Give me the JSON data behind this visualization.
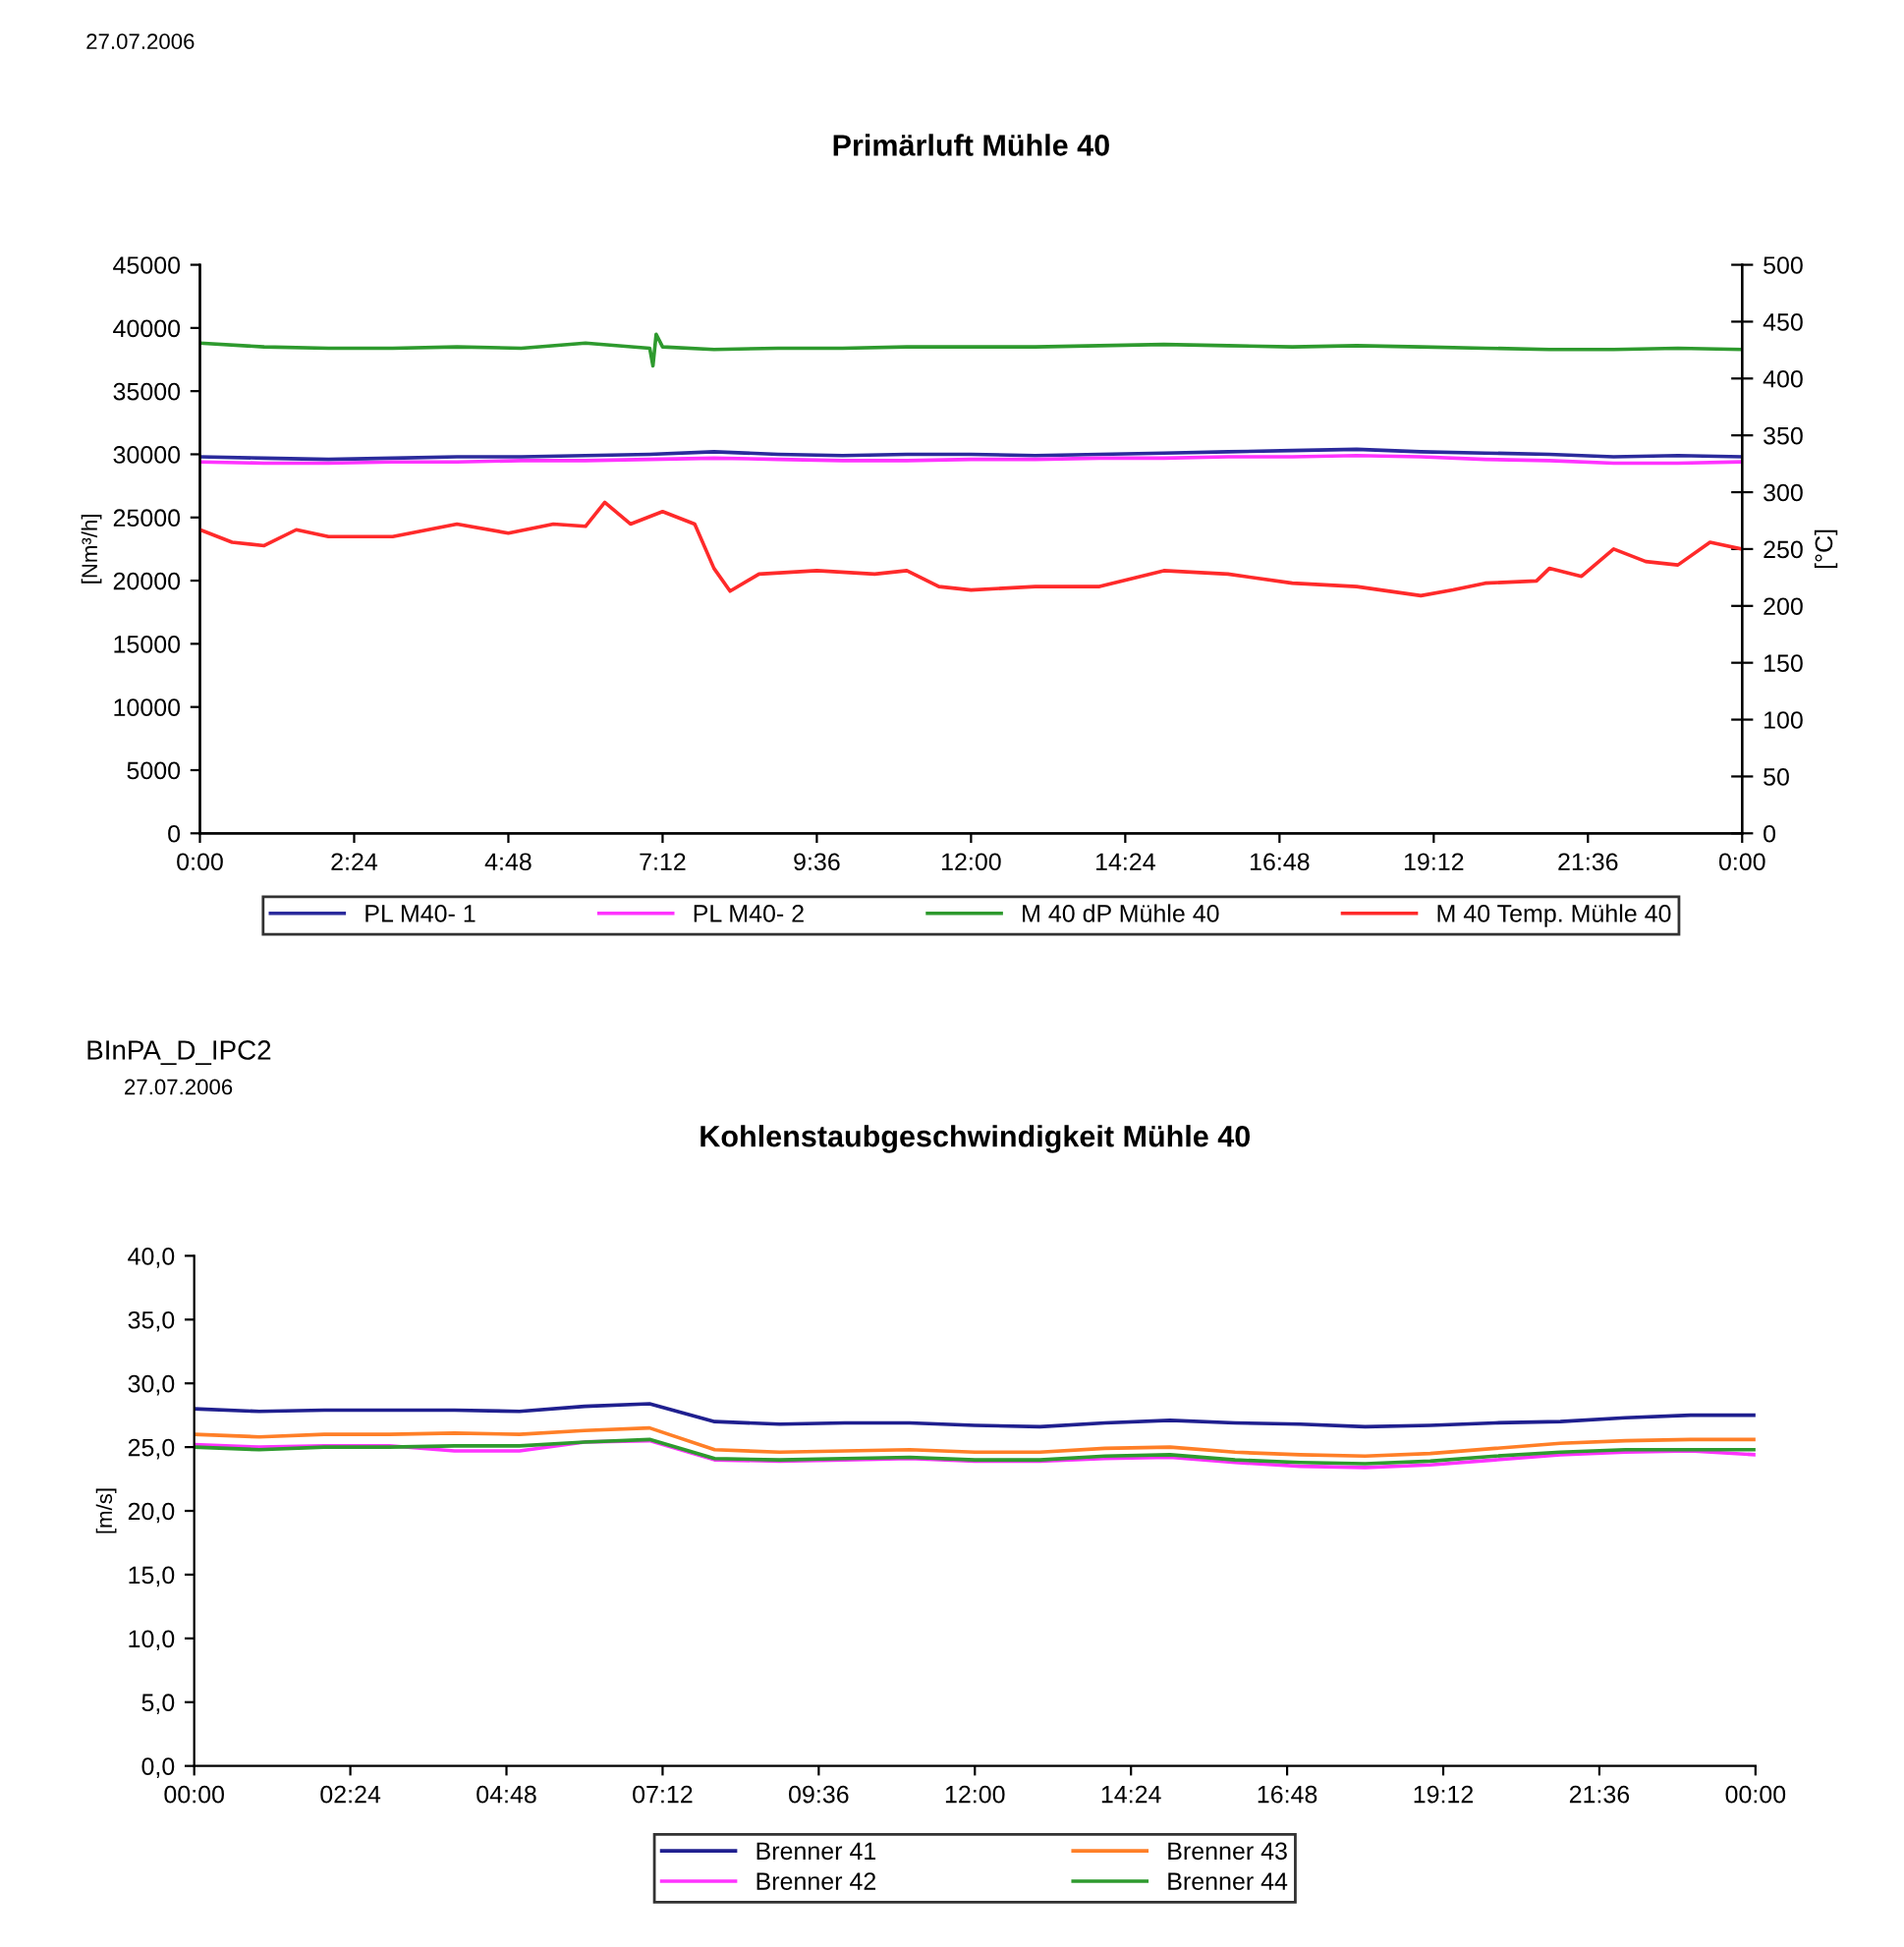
{
  "chart_data": [
    {
      "type": "line",
      "title": "Primärluft Mühle 40",
      "ylabel": "[Nm³/h]",
      "y2label": "[°C]",
      "annotations": [
        "27.07.2006"
      ],
      "x": [
        0,
        1,
        2,
        3,
        4,
        5,
        6,
        7,
        8,
        9,
        10,
        11,
        12,
        13,
        14,
        15,
        16,
        17,
        18,
        19,
        20,
        21,
        22,
        23,
        24
      ],
      "xlim": [
        0,
        24
      ],
      "xticks": [
        {
          "value": 0,
          "label": "0:00"
        },
        {
          "value": 2.4,
          "label": "2:24"
        },
        {
          "value": 4.8,
          "label": "4:48"
        },
        {
          "value": 7.2,
          "label": "7:12"
        },
        {
          "value": 9.6,
          "label": "9:36"
        },
        {
          "value": 12,
          "label": "12:00"
        },
        {
          "value": 14.4,
          "label": "14:24"
        },
        {
          "value": 16.8,
          "label": "16:48"
        },
        {
          "value": 19.2,
          "label": "19:12"
        },
        {
          "value": 21.6,
          "label": "21:36"
        },
        {
          "value": 24,
          "label": "0:00"
        }
      ],
      "ylim": [
        0,
        45000
      ],
      "yticks": [
        0,
        5000,
        10000,
        15000,
        20000,
        25000,
        30000,
        35000,
        40000,
        45000
      ],
      "y2lim": [
        0,
        500
      ],
      "y2ticks": [
        0,
        50,
        100,
        150,
        200,
        250,
        300,
        350,
        400,
        450,
        500
      ],
      "legend": "bottom",
      "series": [
        {
          "name": "PL M40- 1",
          "color": "#2b2b9c",
          "values": [
            29800,
            29700,
            29600,
            29700,
            29800,
            29800,
            29900,
            30000,
            30200,
            30000,
            29900,
            30000,
            30000,
            29900,
            30000,
            30100,
            30200,
            30300,
            30400,
            30200,
            30100,
            30000,
            29800,
            29900,
            29800
          ]
        },
        {
          "name": "PL M40- 2",
          "color": "#ff33ff",
          "values": [
            29400,
            29300,
            29300,
            29400,
            29400,
            29500,
            29500,
            29600,
            29700,
            29600,
            29500,
            29500,
            29600,
            29600,
            29700,
            29700,
            29800,
            29800,
            29900,
            29800,
            29600,
            29500,
            29300,
            29300,
            29400
          ]
        },
        {
          "name": "M 40 dP Mühle 40",
          "color": "#2e9a2e",
          "x": [
            0,
            1,
            2,
            3,
            4,
            5,
            6,
            7,
            7.05,
            7.1,
            7.2,
            8,
            9,
            10,
            11,
            12,
            13,
            14,
            15,
            16,
            17,
            18,
            19,
            20,
            21,
            22,
            23,
            24
          ],
          "values": [
            38800,
            38500,
            38400,
            38400,
            38500,
            38400,
            38800,
            38400,
            37000,
            39500,
            38500,
            38300,
            38400,
            38400,
            38500,
            38500,
            38500,
            38600,
            38700,
            38600,
            38500,
            38600,
            38500,
            38400,
            38300,
            38300,
            38400,
            38300
          ]
        },
        {
          "name": "M 40 Temp. Mühle 40",
          "color": "#ff2a2a",
          "axis": "y2",
          "x": [
            0,
            0.5,
            1,
            1.5,
            2,
            3,
            4,
            4.8,
            5.5,
            6,
            6.3,
            6.7,
            7.2,
            7.7,
            8,
            8.25,
            8.7,
            9.6,
            10.5,
            11,
            11.5,
            12,
            13,
            14,
            15,
            16,
            17,
            18,
            19,
            19.5,
            20,
            20.8,
            21,
            21.5,
            22,
            22.5,
            23,
            23.5,
            24
          ],
          "values": [
            267,
            256,
            253,
            267,
            261,
            261,
            272,
            264,
            272,
            270,
            291,
            272,
            283,
            272,
            233,
            213,
            228,
            231,
            228,
            231,
            217,
            214,
            217,
            217,
            231,
            228,
            220,
            217,
            209,
            214,
            220,
            222,
            233,
            226,
            250,
            239,
            236,
            256,
            250
          ]
        }
      ]
    },
    {
      "type": "line",
      "title": "Kohlenstaubgeschwindigkeit Mühle 40",
      "ylabel": "[m/s]",
      "annotations": [
        "BInPA_D_IPC2",
        "27.07.2006"
      ],
      "x": [
        0,
        1,
        2,
        3,
        4,
        5,
        6,
        7,
        8,
        9,
        10,
        11,
        12,
        13,
        14,
        15,
        16,
        17,
        18,
        19,
        20,
        21,
        22,
        23,
        24
      ],
      "xlim": [
        0,
        24
      ],
      "xticks": [
        {
          "value": 0,
          "label": "00:00"
        },
        {
          "value": 2.4,
          "label": "02:24"
        },
        {
          "value": 4.8,
          "label": "04:48"
        },
        {
          "value": 7.2,
          "label": "07:12"
        },
        {
          "value": 9.6,
          "label": "09:36"
        },
        {
          "value": 12,
          "label": "12:00"
        },
        {
          "value": 14.4,
          "label": "14:24"
        },
        {
          "value": 16.8,
          "label": "16:48"
        },
        {
          "value": 19.2,
          "label": "19:12"
        },
        {
          "value": 21.6,
          "label": "21:36"
        },
        {
          "value": 24,
          "label": "00:00"
        }
      ],
      "ylim": [
        0,
        40
      ],
      "yticks": [
        {
          "value": 0,
          "label": "0,0"
        },
        {
          "value": 5,
          "label": "5,0"
        },
        {
          "value": 10,
          "label": "10,0"
        },
        {
          "value": 15,
          "label": "15,0"
        },
        {
          "value": 20,
          "label": "20,0"
        },
        {
          "value": 25,
          "label": "25,0"
        },
        {
          "value": 30,
          "label": "30,0"
        },
        {
          "value": 35,
          "label": "35,0"
        },
        {
          "value": 40,
          "label": "40,0"
        }
      ],
      "legend": "bottom",
      "series": [
        {
          "name": "Brenner 41",
          "color": "#1f1f8f",
          "values": [
            28.0,
            27.8,
            27.9,
            27.9,
            27.9,
            27.8,
            28.2,
            28.4,
            27.0,
            26.8,
            26.9,
            26.9,
            26.7,
            26.6,
            26.9,
            27.1,
            26.9,
            26.8,
            26.6,
            26.7,
            26.9,
            27.0,
            27.3,
            27.5,
            27.5
          ]
        },
        {
          "name": "Brenner 42",
          "color": "#ff33ff",
          "values": [
            25.2,
            25.0,
            25.1,
            25.1,
            24.7,
            24.7,
            25.4,
            25.5,
            24.0,
            23.9,
            24.0,
            24.1,
            23.9,
            23.9,
            24.1,
            24.2,
            23.8,
            23.5,
            23.4,
            23.6,
            24.0,
            24.4,
            24.6,
            24.7,
            24.4
          ]
        },
        {
          "name": "Brenner 43",
          "color": "#ff7f27",
          "values": [
            26.0,
            25.8,
            26.0,
            26.0,
            26.1,
            26.0,
            26.3,
            26.5,
            24.8,
            24.6,
            24.7,
            24.8,
            24.6,
            24.6,
            24.9,
            25.0,
            24.6,
            24.4,
            24.3,
            24.5,
            24.9,
            25.3,
            25.5,
            25.6,
            25.6
          ]
        },
        {
          "name": "Brenner 44",
          "color": "#2e9a2e",
          "values": [
            25.0,
            24.8,
            25.0,
            25.0,
            25.1,
            25.1,
            25.4,
            25.6,
            24.1,
            24.0,
            24.1,
            24.2,
            24.0,
            24.0,
            24.3,
            24.4,
            24.0,
            23.8,
            23.7,
            23.9,
            24.3,
            24.6,
            24.8,
            24.8,
            24.8
          ]
        }
      ]
    }
  ]
}
